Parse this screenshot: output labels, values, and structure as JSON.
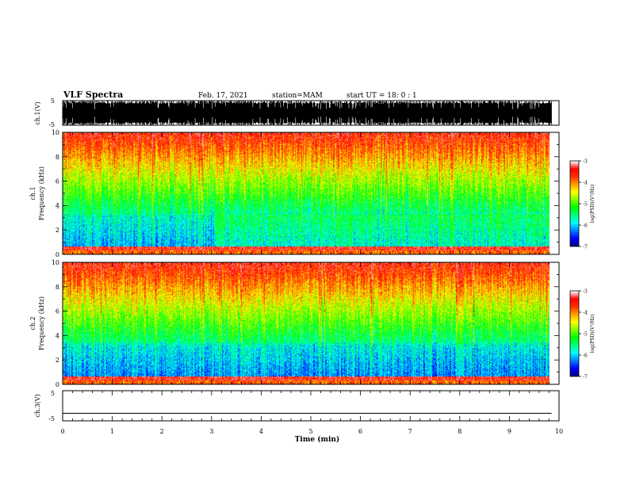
{
  "header": {
    "title": "VLF Spectra",
    "date": "Feb. 17, 2021",
    "station": "station=MAM",
    "start": "start  UT  =   18: 0  : 1"
  },
  "colors": {
    "colormap": [
      "#00008b",
      "#0000ff",
      "#0080ff",
      "#00ffff",
      "#00ff80",
      "#00ff00",
      "#80ff00",
      "#ffff00",
      "#ffa000",
      "#ff3000",
      "#ff0000",
      "#ffffff"
    ]
  },
  "chart_data": [
    {
      "type": "line",
      "name": "ch1-waveform",
      "ylabel": "ch.1(V)",
      "ylim": [
        -5,
        5
      ],
      "yticks": [
        "5",
        "-5"
      ],
      "xlim": [
        0,
        10
      ],
      "note": "dense black waveform bursts spanning roughly -5..5 V"
    },
    {
      "type": "heatmap",
      "ylabel_top": "ch.1",
      "ylabel": "Frequency  (kHz)",
      "ylim": [
        0,
        10
      ],
      "yticks": [
        "0",
        "2",
        "4",
        "6",
        "8",
        "10"
      ],
      "xlim": [
        0,
        9.85
      ],
      "colorbar": {
        "label": "log(PSD)(V²/Hz)",
        "ticks": [
          "-3",
          "-4",
          "-5",
          "-6",
          "-7"
        ],
        "range": [
          -7,
          -3
        ]
      }
    },
    {
      "type": "heatmap",
      "ylabel_top": "ch.2",
      "ylabel": "Frequency  (kHz)",
      "ylim": [
        0,
        10
      ],
      "yticks": [
        "0",
        "2",
        "4",
        "6",
        "8",
        "10"
      ],
      "xlim": [
        0,
        9.85
      ],
      "colorbar": {
        "label": "log(PSD)(V²/Hz)",
        "ticks": [
          "-3",
          "-4",
          "-5",
          "-6",
          "-7"
        ],
        "range": [
          -7,
          -3
        ]
      }
    },
    {
      "type": "line",
      "name": "ch3-waveform",
      "ylabel": "ch.3(V)",
      "ylim": [
        -5,
        5
      ],
      "yticks": [
        "5",
        "-5"
      ],
      "xlim": [
        0,
        10
      ],
      "level": -2.5
    }
  ],
  "xaxis": {
    "label": "Time  (min)",
    "ticks": [
      "0",
      "1",
      "2",
      "3",
      "4",
      "5",
      "6",
      "7",
      "8",
      "9",
      "10"
    ]
  }
}
